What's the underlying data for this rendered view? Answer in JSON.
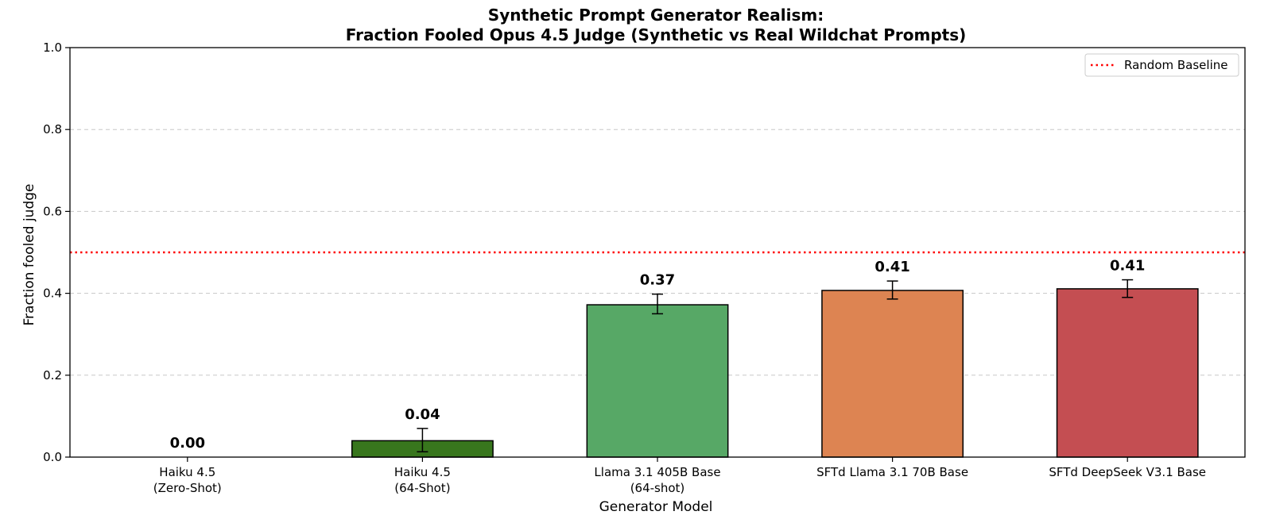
{
  "chart_data": {
    "type": "bar",
    "title": "Synthetic Prompt Generator Realism:",
    "subtitle": "Fraction Fooled Opus 4.5 Judge (Synthetic vs Real Wildchat Prompts)",
    "xlabel": "Generator Model",
    "ylabel": "Fraction fooled judge",
    "ylim": [
      0,
      1.0
    ],
    "yticks": [
      0.0,
      0.2,
      0.4,
      0.6,
      0.8,
      1.0
    ],
    "ytick_labels": [
      "0.0",
      "0.2",
      "0.4",
      "0.6",
      "0.8",
      "1.0"
    ],
    "grid": true,
    "categories": [
      [
        "Haiku 4.5",
        "(Zero-Shot)"
      ],
      [
        "Haiku 4.5",
        "(64-Shot)"
      ],
      [
        "Llama 3.1 405B Base",
        "(64-shot)"
      ],
      [
        "SFTd Llama 3.1 70B Base"
      ],
      [
        "SFTd DeepSeek V3.1 Base"
      ]
    ],
    "values": [
      0.0,
      0.04,
      0.372,
      0.407,
      0.411
    ],
    "value_labels": [
      "0.00",
      "0.04",
      "0.37",
      "0.41",
      "0.41"
    ],
    "error_bars": [
      null,
      [
        0.013,
        0.07
      ],
      [
        0.35,
        0.398
      ],
      [
        0.386,
        0.43
      ],
      [
        0.39,
        0.433
      ]
    ],
    "colors": [
      "#2ca02c",
      "#38761d",
      "#57a866",
      "#dd8452",
      "#c44e52"
    ],
    "baseline": {
      "label": "Random Baseline",
      "value": 0.5,
      "color": "#ff0000"
    },
    "legend_placement": "top-right"
  }
}
